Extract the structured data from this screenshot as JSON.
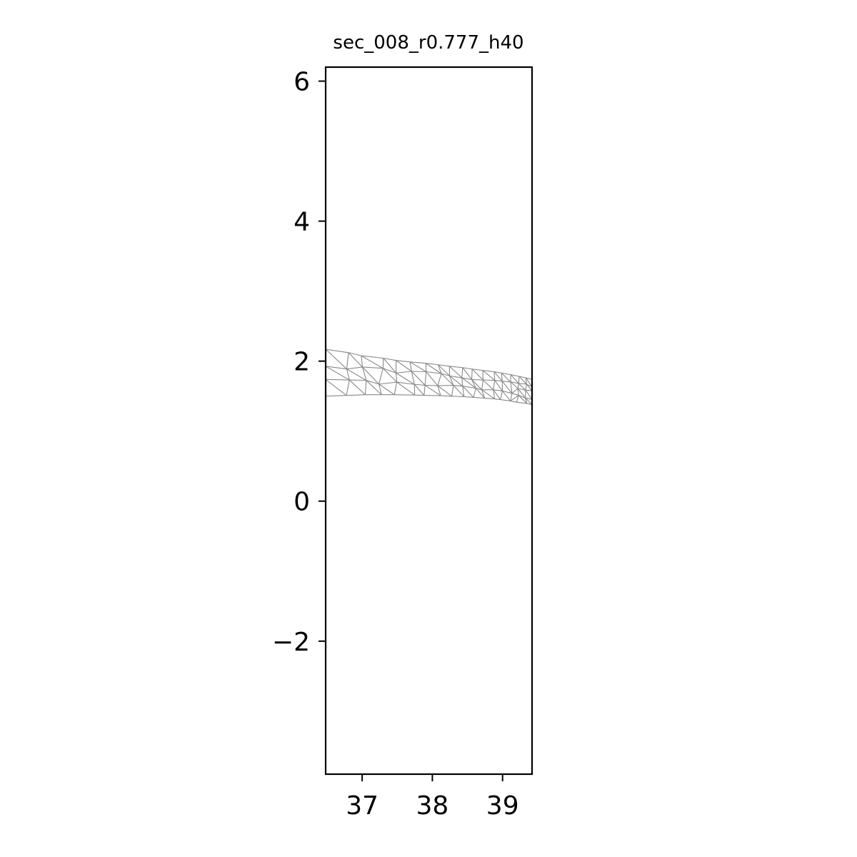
{
  "chart_data": {
    "type": "mesh",
    "title": "sec_008_r0.777_h40",
    "xlabel": "",
    "ylabel": "",
    "xlim": [
      36.48,
      39.42
    ],
    "ylim": [
      -3.9,
      6.2
    ],
    "x_ticks": [
      {
        "value": 37,
        "label": "37"
      },
      {
        "value": 38,
        "label": "38"
      },
      {
        "value": 39,
        "label": "39"
      }
    ],
    "y_ticks": [
      {
        "value": -2,
        "label": "−2"
      },
      {
        "value": 0,
        "label": "0"
      },
      {
        "value": 2,
        "label": "2"
      },
      {
        "value": 4,
        "label": "4"
      },
      {
        "value": 6,
        "label": "6"
      }
    ],
    "grid": false,
    "mesh": {
      "color": "#888888",
      "upper_boundary": [
        [
          36.48,
          2.17
        ],
        [
          37.0,
          2.08
        ],
        [
          37.5,
          2.01
        ],
        [
          38.0,
          1.96
        ],
        [
          38.5,
          1.9
        ],
        [
          39.0,
          1.83
        ],
        [
          39.42,
          1.74
        ]
      ],
      "lower_boundary": [
        [
          36.48,
          1.5
        ],
        [
          37.0,
          1.52
        ],
        [
          37.5,
          1.52
        ],
        [
          38.0,
          1.51
        ],
        [
          38.5,
          1.49
        ],
        [
          39.0,
          1.45
        ],
        [
          39.42,
          1.38
        ]
      ],
      "element_size_left": 0.28,
      "element_size_right": 0.09
    }
  }
}
